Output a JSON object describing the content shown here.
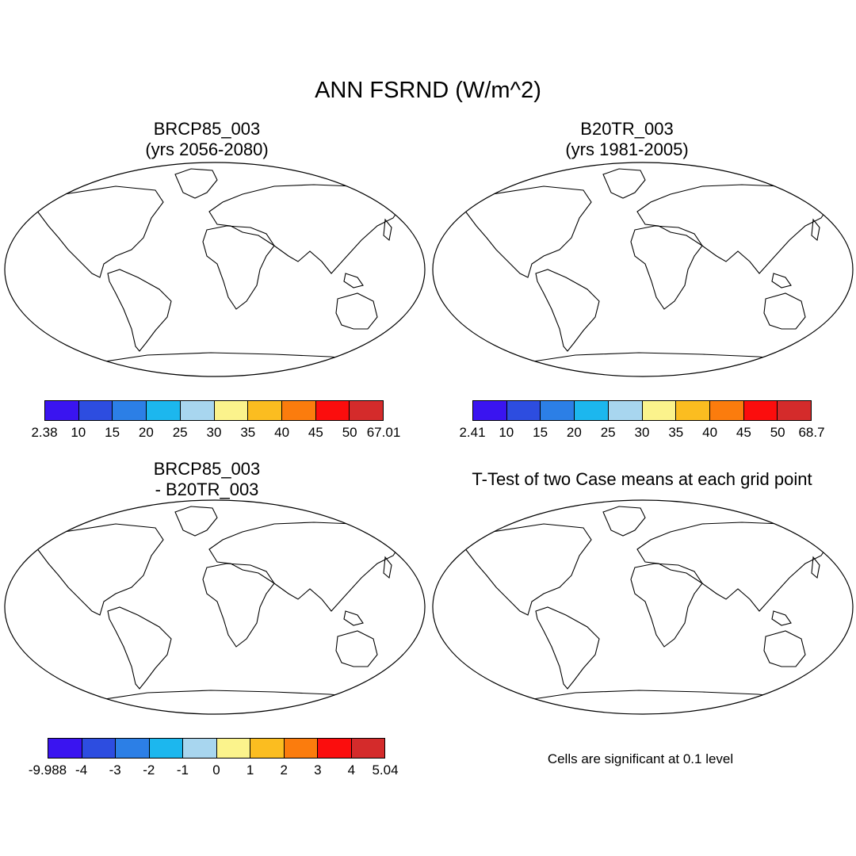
{
  "title": "ANN FSRND (W/m^2)",
  "panels": {
    "top_left": {
      "title_line1": "BRCP85_003",
      "title_line2": "(yrs 2056-2080)",
      "colorbar_labels": [
        "2.38",
        "10",
        "15",
        "20",
        "25",
        "30",
        "35",
        "40",
        "45",
        "50",
        "67.01"
      ]
    },
    "top_right": {
      "title_line1": "B20TR_003",
      "title_line2": "(yrs 1981-2005)",
      "colorbar_labels": [
        "2.41",
        "10",
        "15",
        "20",
        "25",
        "30",
        "35",
        "40",
        "45",
        "50",
        "68.7"
      ]
    },
    "bottom_left": {
      "title_line1": "BRCP85_003",
      "title_line2": "- B20TR_003",
      "colorbar_labels": [
        "-9.988",
        "-4",
        "-3",
        "-2",
        "-1",
        "0",
        "1",
        "2",
        "3",
        "4",
        "5.04"
      ]
    },
    "bottom_right": {
      "title": "T-Test of two Case means at each grid point",
      "note": "Cells are significant at 0.1 level"
    }
  },
  "colors": {
    "palette": [
      "#3a14f0",
      "#2d4de0",
      "#2c7fe6",
      "#1cb7ee",
      "#a8d6ef",
      "#fbf38c",
      "#fbbd20",
      "#fb7c0d",
      "#fb0d0d",
      "#d42b2b"
    ],
    "ocean": "#ffffff",
    "significant": "#ff0000",
    "coast": "#000000"
  }
}
